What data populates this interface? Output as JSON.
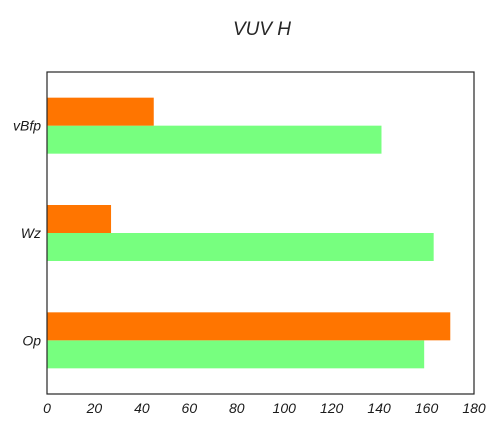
{
  "chart_data": {
    "type": "bar",
    "orientation": "horizontal",
    "title": "VUV H",
    "xlabel": "",
    "ylabel": "",
    "categories": [
      "Op",
      "Wz",
      "vBfp"
    ],
    "series": [
      {
        "color": "#77ff7f",
        "values": [
          159,
          163,
          141
        ]
      },
      {
        "color": "#ff7500",
        "values": [
          170,
          27,
          45
        ]
      }
    ],
    "xlim": [
      0,
      180
    ],
    "xticks": [
      0,
      20,
      40,
      60,
      80,
      100,
      120,
      140,
      160,
      180
    ],
    "grid": false,
    "legend": "none"
  }
}
